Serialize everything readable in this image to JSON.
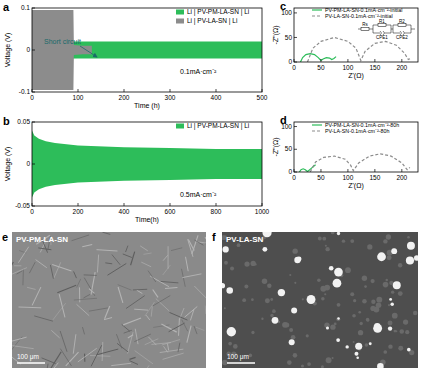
{
  "chart_data": [
    {
      "type": "area",
      "title": "a",
      "x_label": "Time (h)",
      "y_label": "Voltage (V)",
      "xlim": [
        0,
        500
      ],
      "ylim": [
        -0.1,
        0.1
      ],
      "xticks": [
        0,
        100,
        200,
        300,
        400,
        500
      ],
      "yticks": [
        -0.1,
        0,
        0.1
      ],
      "legend": "upper right",
      "annotations": [
        "Short circuit",
        "0.1mA·cm⁻²"
      ],
      "series": [
        {
          "name": "Li | PV-PM-LA-SN | Li",
          "color": "#2dbd5a",
          "x": [
            0,
            5,
            20,
            50,
            100,
            200,
            300,
            400,
            500
          ],
          "values": [
            0.03,
            0.026,
            0.022,
            0.021,
            0.02,
            0.02,
            0.02,
            0.02,
            0.02
          ],
          "lower": [
            -0.03,
            -0.026,
            -0.022,
            -0.021,
            -0.02,
            -0.02,
            -0.02,
            -0.02,
            -0.02
          ]
        },
        {
          "name": "Li | PV-LA-SN | Li",
          "color": "#8c8c8c",
          "x": [
            0,
            30,
            60,
            90,
            91,
            110,
            130
          ],
          "values": [
            0.095,
            0.095,
            0.095,
            0.095,
            0.012,
            0.01,
            0.01
          ],
          "lower": [
            -0.095,
            -0.095,
            -0.095,
            -0.095,
            -0.012,
            -0.01,
            -0.01
          ]
        }
      ]
    },
    {
      "type": "area",
      "title": "b",
      "x_label": "Time(h)",
      "y_label": "Voltage (V)",
      "xlim": [
        0,
        1000
      ],
      "ylim": [
        -0.05,
        0.05
      ],
      "xticks": [
        0,
        200,
        400,
        600,
        800,
        1000
      ],
      "yticks": [
        -0.05,
        0,
        0.05
      ],
      "legend": "upper right",
      "annotations": [
        "0.5mA·cm⁻²"
      ],
      "series": [
        {
          "name": "Li | PV-PM-LA-SN | Li",
          "color": "#2dbd5a",
          "x": [
            0,
            10,
            30,
            60,
            100,
            200,
            400,
            600,
            800,
            1000
          ],
          "values": [
            0.04,
            0.034,
            0.03,
            0.027,
            0.025,
            0.022,
            0.02,
            0.019,
            0.018,
            0.018
          ],
          "lower": [
            -0.04,
            -0.034,
            -0.03,
            -0.027,
            -0.025,
            -0.022,
            -0.02,
            -0.019,
            -0.018,
            -0.018
          ]
        }
      ]
    },
    {
      "type": "line",
      "title": "c",
      "x_label": "Z'(Ω)",
      "y_label": "-Z''(Ω)",
      "xlim": [
        0,
        230
      ],
      "ylim": [
        0,
        110
      ],
      "xticks": [
        0,
        50,
        100,
        150,
        200
      ],
      "yticks": [
        0,
        50,
        100
      ],
      "legend": "upper right",
      "inset": {
        "labels": [
          "Rs",
          "R1",
          "CPE1",
          "R2",
          "CPE2"
        ]
      },
      "series": [
        {
          "name": "PV-PM-LA-SN-0.1mA·cm⁻²-initial",
          "color": "#2dbd5a",
          "line_style": "solid",
          "x": [
            12,
            16,
            22,
            30,
            38,
            45,
            50,
            54,
            60,
            66,
            70,
            74,
            78
          ],
          "values": [
            0,
            9,
            15,
            17,
            15,
            9,
            3,
            6,
            9,
            8,
            5,
            7,
            11
          ]
        },
        {
          "name": "PV-LA-SN-0.1mA·cm⁻²-initial",
          "color": "#8c8c8c",
          "line_style": "dashed",
          "x": [
            25,
            35,
            50,
            75,
            100,
            115,
            124,
            132,
            150,
            170,
            190,
            205,
            212,
            218
          ],
          "values": [
            0,
            28,
            42,
            50,
            42,
            28,
            3,
            22,
            38,
            42,
            34,
            18,
            5,
            8
          ]
        }
      ]
    },
    {
      "type": "line",
      "title": "d",
      "x_label": "Z'(Ω)",
      "y_label": "-Z''(Ω)",
      "xlim": [
        0,
        230
      ],
      "ylim": [
        0,
        110
      ],
      "xticks": [
        0,
        50,
        100,
        150,
        200
      ],
      "yticks": [
        0,
        50,
        100
      ],
      "legend": "upper right",
      "series": [
        {
          "name": "PV-PM-LA-SN-0.1mA·cm⁻²-80h",
          "color": "#2dbd5a",
          "line_style": "solid",
          "x": [
            10,
            13,
            17,
            21,
            25,
            28,
            32,
            36,
            40
          ],
          "values": [
            0,
            5,
            7,
            5,
            1,
            4,
            8,
            12,
            16
          ]
        },
        {
          "name": "PV-LA-SN-0.1mA·cm⁻²-80h",
          "color": "#8c8c8c",
          "line_style": "dashed",
          "x": [
            30,
            40,
            55,
            75,
            95,
            105,
            110,
            120,
            140,
            160,
            180,
            200,
            210,
            215
          ],
          "values": [
            0,
            22,
            32,
            35,
            28,
            15,
            3,
            20,
            35,
            40,
            35,
            20,
            5,
            10
          ]
        }
      ]
    }
  ],
  "images": [
    {
      "title": "e",
      "label": "PV-PM-LA-SN",
      "scale_bar": "100 μm"
    },
    {
      "title": "f",
      "label": "PV-LA-SN",
      "scale_bar": "100 μm"
    }
  ]
}
